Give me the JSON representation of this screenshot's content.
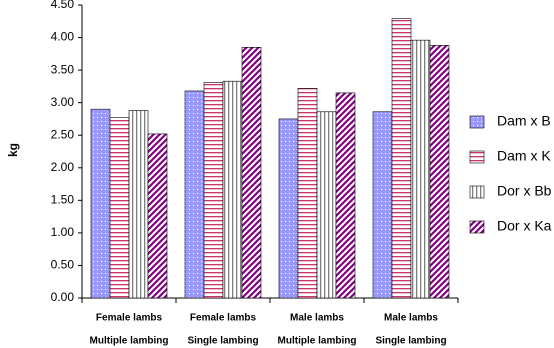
{
  "chart_data": {
    "type": "bar",
    "y_label": "kg",
    "categories": [
      [
        "Female lambs",
        "Multiple lambing"
      ],
      [
        "Female lambs",
        "Single lambing"
      ],
      [
        "Male lambs",
        "Multiple lambing"
      ],
      [
        "Male lambs",
        "Single lambing"
      ]
    ],
    "series": [
      {
        "name": "Dam x B",
        "color": "#9999ff",
        "pattern": "dots",
        "values": [
          2.9,
          3.18,
          2.75,
          2.86
        ]
      },
      {
        "name": "Dam x K",
        "color": "#cc3366",
        "pattern": "horizontal",
        "values": [
          2.77,
          3.31,
          3.22,
          4.29
        ]
      },
      {
        "name": "Dor x Bb",
        "color": "#808080",
        "pattern": "vertical",
        "values": [
          2.88,
          3.33,
          2.86,
          3.96
        ]
      },
      {
        "name": "Dor x Ka",
        "color": "#800080",
        "pattern": "diagonal",
        "values": [
          2.52,
          3.85,
          3.15,
          3.88
        ]
      }
    ],
    "ylim": [
      0,
      4.5
    ],
    "yticks": [
      {
        "value": 0,
        "label": "0.00"
      },
      {
        "value": 0.5,
        "label": "0.50"
      },
      {
        "value": 1,
        "label": "1.00"
      },
      {
        "value": 1.5,
        "label": "1.50"
      },
      {
        "value": 2,
        "label": "2.00"
      },
      {
        "value": 2.5,
        "label": "2.50"
      },
      {
        "value": 3,
        "label": "3.00"
      },
      {
        "value": 3.5,
        "label": "3.50"
      },
      {
        "value": 4,
        "label": "4.00"
      },
      {
        "value": 4.5,
        "label": "4.50"
      }
    ],
    "grid": false,
    "legend": "right"
  }
}
